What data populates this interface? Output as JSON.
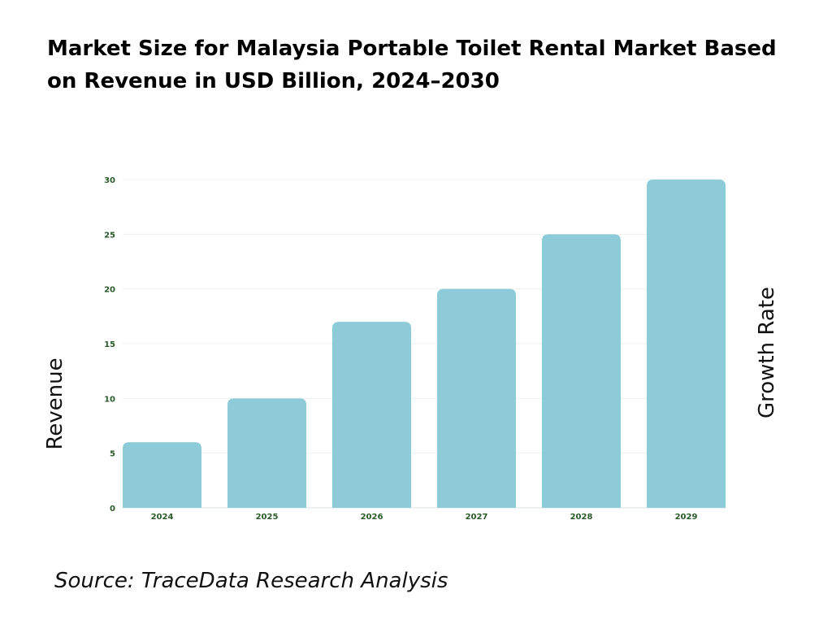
{
  "chart_data": {
    "type": "bar",
    "title": "Market Size for Malaysia Portable Toilet Rental Market Based on Revenue in USD Billion, 2024–2030",
    "categories": [
      "2024",
      "2025",
      "2026",
      "2027",
      "2028",
      "2029"
    ],
    "values": [
      6,
      10,
      17,
      20,
      25,
      30
    ],
    "ylabel": "Revenue",
    "y2label": "Growth Rate",
    "xlabel": "",
    "ylim": [
      0,
      30
    ],
    "yticks": [
      0,
      5,
      10,
      15,
      20,
      25,
      30
    ],
    "grid": true,
    "legend": "none",
    "bar_color": "#8ccbd7",
    "tick_color": "#2a5a2a"
  },
  "source": "Source: TraceData Research Analysis"
}
